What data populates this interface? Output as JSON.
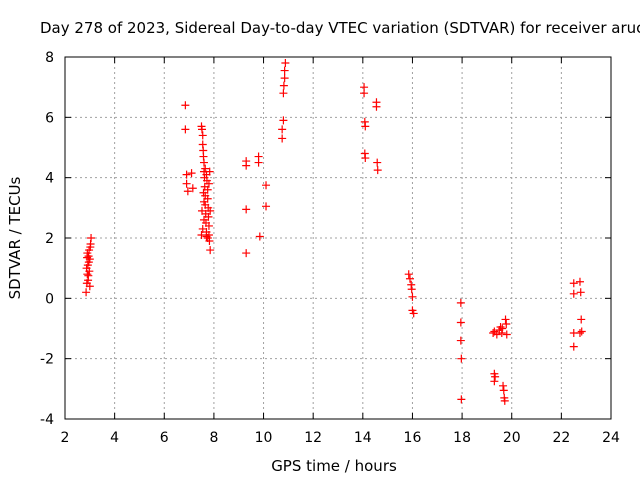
{
  "chart_data": {
    "type": "scatter",
    "title": "Day 278 of 2023, Sidereal Day-to-day VTEC variation (SDTVAR) for receiver aruc",
    "xlabel": "GPS time / hours",
    "ylabel": "SDTVAR / TECUs",
    "xlim": [
      2,
      24
    ],
    "ylim": [
      -4,
      8
    ],
    "xticks": [
      "2",
      "4",
      "6",
      "8",
      "10",
      "12",
      "14",
      "16",
      "18",
      "20",
      "22",
      "24"
    ],
    "yticks": [
      "-4",
      "-2",
      "0",
      "2",
      "4",
      "6",
      "8"
    ],
    "grid": true,
    "marker": "+",
    "marker_color": "#ff0000",
    "series": [
      {
        "name": "SDTVAR",
        "points": [
          [
            2.85,
            0.2
          ],
          [
            2.88,
            0.5
          ],
          [
            2.9,
            0.8
          ],
          [
            2.92,
            1.1
          ],
          [
            2.95,
            1.4
          ],
          [
            2.97,
            1.6
          ],
          [
            2.98,
            0.9
          ],
          [
            3.0,
            1.3
          ],
          [
            3.02,
            1.7
          ],
          [
            3.05,
            2.0
          ],
          [
            2.87,
            1.0
          ],
          [
            2.9,
            1.5
          ],
          [
            2.93,
            0.6
          ],
          [
            2.96,
            1.2
          ],
          [
            3.0,
            0.4
          ],
          [
            3.03,
            1.8
          ],
          [
            2.89,
            1.35
          ],
          [
            2.94,
            0.75
          ],
          [
            6.85,
            6.4
          ],
          [
            6.85,
            5.6
          ],
          [
            6.9,
            4.1
          ],
          [
            6.9,
            3.8
          ],
          [
            6.95,
            3.55
          ],
          [
            7.1,
            4.15
          ],
          [
            7.15,
            3.65
          ],
          [
            7.5,
            5.7
          ],
          [
            7.52,
            5.6
          ],
          [
            7.55,
            5.4
          ],
          [
            7.55,
            5.1
          ],
          [
            7.57,
            4.9
          ],
          [
            7.58,
            4.7
          ],
          [
            7.6,
            4.5
          ],
          [
            7.6,
            4.2
          ],
          [
            7.62,
            4.0
          ],
          [
            7.63,
            3.7
          ],
          [
            7.65,
            3.4
          ],
          [
            7.65,
            3.1
          ],
          [
            7.67,
            2.8
          ],
          [
            7.68,
            2.5
          ],
          [
            7.7,
            2.2
          ],
          [
            7.7,
            2.05
          ],
          [
            7.72,
            3.9
          ],
          [
            7.75,
            3.6
          ],
          [
            7.75,
            3.3
          ],
          [
            7.77,
            3.0
          ],
          [
            7.78,
            2.7
          ],
          [
            7.8,
            2.4
          ],
          [
            7.8,
            2.1
          ],
          [
            7.82,
            1.9
          ],
          [
            7.85,
            1.6
          ],
          [
            7.55,
            2.3
          ],
          [
            7.5,
            2.1
          ],
          [
            7.6,
            2.6
          ],
          [
            7.65,
            4.3
          ],
          [
            7.7,
            4.1
          ],
          [
            7.8,
            3.8
          ],
          [
            7.85,
            2.9
          ],
          [
            7.75,
            2.0
          ],
          [
            7.6,
            3.2
          ],
          [
            7.52,
            2.9
          ],
          [
            7.58,
            3.5
          ],
          [
            7.83,
            4.2
          ],
          [
            9.3,
            4.55
          ],
          [
            9.3,
            4.4
          ],
          [
            9.3,
            2.95
          ],
          [
            9.3,
            1.5
          ],
          [
            9.8,
            4.7
          ],
          [
            9.8,
            4.5
          ],
          [
            9.85,
            2.05
          ],
          [
            10.1,
            3.75
          ],
          [
            10.1,
            3.05
          ],
          [
            10.75,
            5.3
          ],
          [
            10.75,
            5.6
          ],
          [
            10.8,
            5.9
          ],
          [
            10.8,
            6.8
          ],
          [
            10.82,
            7.05
          ],
          [
            10.85,
            7.3
          ],
          [
            10.85,
            7.55
          ],
          [
            10.88,
            7.8
          ],
          [
            14.05,
            7.0
          ],
          [
            14.05,
            6.8
          ],
          [
            14.08,
            5.85
          ],
          [
            14.1,
            5.7
          ],
          [
            14.08,
            4.8
          ],
          [
            14.1,
            4.65
          ],
          [
            14.55,
            6.5
          ],
          [
            14.55,
            6.35
          ],
          [
            14.58,
            4.5
          ],
          [
            14.6,
            4.25
          ],
          [
            15.85,
            0.8
          ],
          [
            15.9,
            0.65
          ],
          [
            15.95,
            0.45
          ],
          [
            15.97,
            0.3
          ],
          [
            16.0,
            0.05
          ],
          [
            16.0,
            -0.4
          ],
          [
            16.05,
            -0.5
          ],
          [
            17.95,
            -0.15
          ],
          [
            17.95,
            -0.8
          ],
          [
            17.95,
            -1.4
          ],
          [
            17.97,
            -2.0
          ],
          [
            17.97,
            -3.35
          ],
          [
            19.25,
            -1.15
          ],
          [
            19.3,
            -1.1
          ],
          [
            19.3,
            -2.5
          ],
          [
            19.3,
            -2.75
          ],
          [
            19.4,
            -1.2
          ],
          [
            19.5,
            -1.05
          ],
          [
            19.55,
            -0.95
          ],
          [
            19.6,
            -1.15
          ],
          [
            19.65,
            -2.9
          ],
          [
            19.68,
            -3.05
          ],
          [
            19.7,
            -3.3
          ],
          [
            19.72,
            -3.4
          ],
          [
            19.75,
            -0.7
          ],
          [
            19.78,
            -0.85
          ],
          [
            19.8,
            -1.2
          ],
          [
            19.62,
            -1.0
          ],
          [
            19.33,
            -2.6
          ],
          [
            22.5,
            0.5
          ],
          [
            22.5,
            0.15
          ],
          [
            22.5,
            -1.15
          ],
          [
            22.5,
            -1.6
          ],
          [
            22.75,
            0.55
          ],
          [
            22.78,
            0.2
          ],
          [
            22.8,
            -0.7
          ],
          [
            22.82,
            -1.1
          ],
          [
            22.75,
            -1.15
          ]
        ]
      }
    ]
  }
}
